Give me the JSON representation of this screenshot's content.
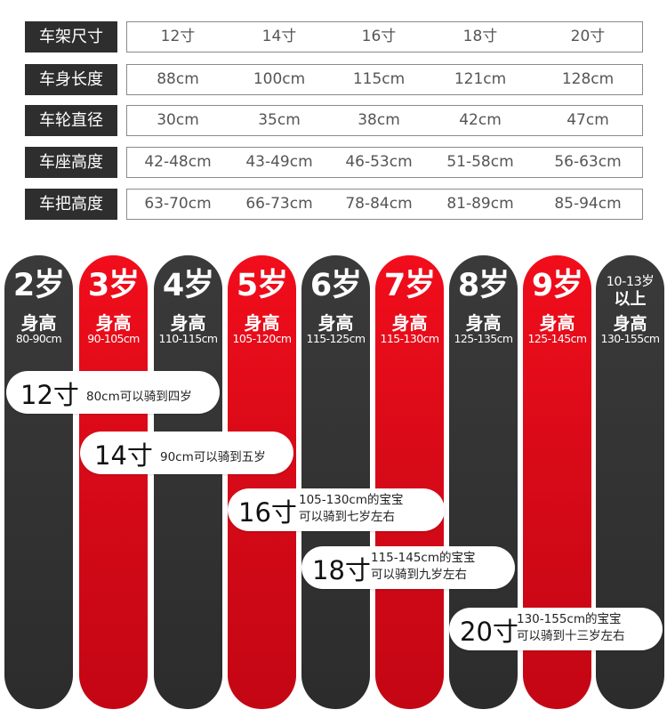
{
  "spec_table": {
    "rows": [
      {
        "label": "车架尺寸",
        "values": [
          "12寸",
          "14寸",
          "16寸",
          "18寸",
          "20寸"
        ]
      },
      {
        "label": "车身长度",
        "values": [
          "88cm",
          "100cm",
          "115cm",
          "121cm",
          "128cm"
        ]
      },
      {
        "label": "车轮直径",
        "values": [
          "30cm",
          "35cm",
          "38cm",
          "42cm",
          "47cm"
        ]
      },
      {
        "label": "车座高度",
        "values": [
          "42-48cm",
          "43-49cm",
          "46-53cm",
          "51-58cm",
          "56-63cm"
        ]
      },
      {
        "label": "车把高度",
        "values": [
          "63-70cm",
          "66-73cm",
          "78-84cm",
          "81-89cm",
          "85-94cm"
        ]
      }
    ]
  },
  "age_columns": [
    {
      "age": "2岁",
      "height_label": "身高",
      "range": "80-90cm",
      "color": "#2e2e2e"
    },
    {
      "age": "3岁",
      "height_label": "身高",
      "range": "90-105cm",
      "color": "#e30b18"
    },
    {
      "age": "4岁",
      "height_label": "身高",
      "range": "110-115cm",
      "color": "#2e2e2e"
    },
    {
      "age": "5岁",
      "height_label": "身高",
      "range": "105-120cm",
      "color": "#e30b18"
    },
    {
      "age": "6岁",
      "height_label": "身高",
      "range": "115-125cm",
      "color": "#2e2e2e"
    },
    {
      "age": "7岁",
      "height_label": "身高",
      "range": "115-130cm",
      "color": "#e30b18"
    },
    {
      "age": "8岁",
      "height_label": "身高",
      "range": "125-135cm",
      "color": "#2e2e2e"
    },
    {
      "age": "9岁",
      "height_label": "身高",
      "range": "125-145cm",
      "color": "#e30b18"
    },
    {
      "age_line1": "10-13岁",
      "age_line2": "以上",
      "height_label": "身高",
      "range": "130-155cm",
      "color": "#2e2e2e"
    }
  ],
  "size_callouts": [
    {
      "size": "12寸",
      "note": "80cm可以骑到四岁"
    },
    {
      "size": "14寸",
      "note": "90cm可以骑到五岁"
    },
    {
      "size": "16寸",
      "note_line1": "105-130cm的宝宝",
      "note_line2": "可以骑到七岁左右"
    },
    {
      "size": "18寸",
      "note_line1": "115-145cm的宝宝",
      "note_line2": "可以骑到九岁左右"
    },
    {
      "size": "20寸",
      "note_line1": "130-155cm的宝宝",
      "note_line2": "可以骑到十三岁左右"
    }
  ]
}
